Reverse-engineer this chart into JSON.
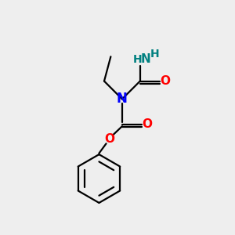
{
  "bg_color": "#eeeeee",
  "line_color": "#000000",
  "N_color": "#0000ff",
  "O_color": "#ff0000",
  "NH2_color": "#008080",
  "line_width": 1.6,
  "figsize": [
    3.0,
    3.0
  ],
  "dpi": 100,
  "xlim": [
    0,
    10
  ],
  "ylim": [
    0,
    10
  ]
}
